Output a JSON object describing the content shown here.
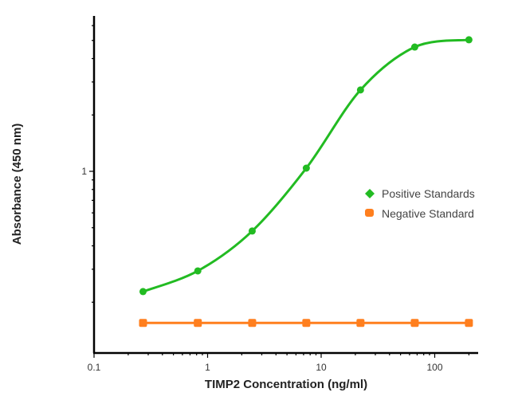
{
  "chart_data": {
    "type": "line",
    "title": "",
    "xlabel": "TIMP2 Concentration (ng/ml)",
    "ylabel": "Absorbance (450 nm)",
    "x_scale": "log",
    "y_scale": "log",
    "xlim": [
      0.1,
      235
    ],
    "ylim": [
      0.107,
      6.8
    ],
    "x_ticks": [
      {
        "value": 0.1,
        "label": "0.1"
      },
      {
        "value": 1,
        "label": "1"
      },
      {
        "value": 10,
        "label": "10"
      },
      {
        "value": 100,
        "label": "100"
      }
    ],
    "y_ticks": [
      {
        "value": 1,
        "label": "1"
      }
    ],
    "grid": false,
    "legend_position": "right",
    "x": [
      0.27,
      0.82,
      2.47,
      7.4,
      22.2,
      66.7,
      200
    ],
    "series": [
      {
        "name": "Positive Standards",
        "color": "#22bb22",
        "marker": "circle",
        "fit_curve": true,
        "values": [
          0.228,
          0.294,
          0.48,
          1.04,
          2.72,
          4.61,
          5.04
        ]
      },
      {
        "name": "Negative Standard",
        "color": "#ff7f1e",
        "marker": "square",
        "fit_curve": false,
        "values": [
          0.155,
          0.155,
          0.155,
          0.155,
          0.155,
          0.155,
          0.155
        ]
      }
    ]
  }
}
